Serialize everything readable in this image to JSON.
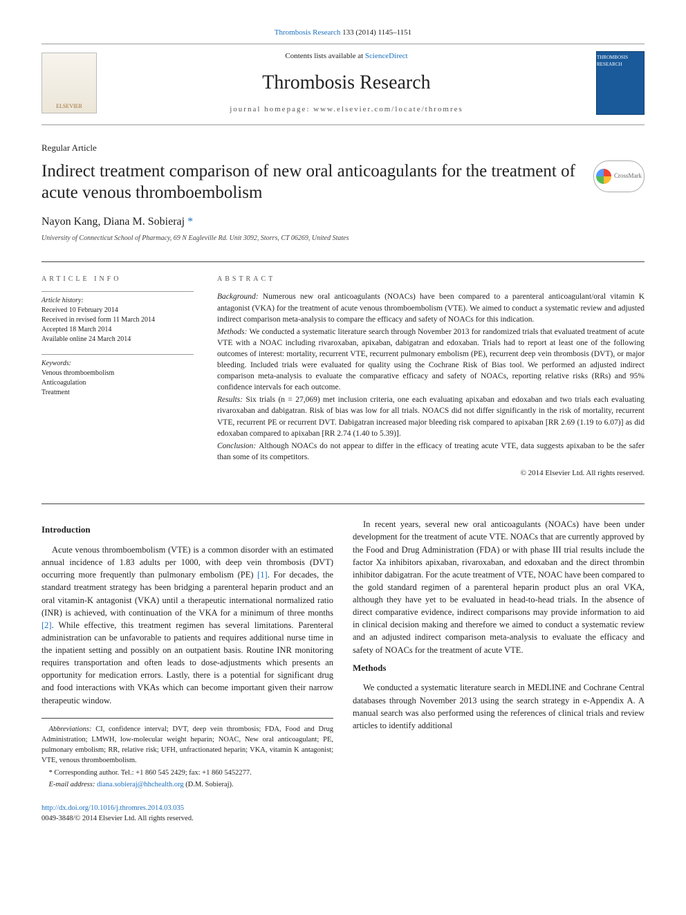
{
  "top_citation": {
    "journal_link_text": "Thrombosis Research",
    "citation_rest": " 133 (2014) 1145–1151"
  },
  "header": {
    "elsevier": "ELSEVIER",
    "contents_prefix": "Contents lists available at ",
    "contents_link": "ScienceDirect",
    "journal_name": "Thrombosis Research",
    "homepage_prefix": "journal homepage: ",
    "homepage_url": "www.elsevier.com/locate/thromres",
    "cover_label": "THROMBOSIS RESEARCH"
  },
  "article": {
    "type": "Regular Article",
    "title": "Indirect treatment comparison of new oral anticoagulants for the treatment of acute venous thromboembolism",
    "crossmark_label": "CrossMark",
    "authors": "Nayon Kang, Diana M. Sobieraj ",
    "corr_mark": "*",
    "affiliation": "University of Connecticut School of Pharmacy, 69 N Eagleville Rd. Unit 3092, Storrs, CT 06269, United States"
  },
  "meta": {
    "info_heading": "article info",
    "abstract_heading": "abstract",
    "history_label": "Article history:",
    "history": [
      "Received 10 February 2014",
      "Received in revised form 11 March 2014",
      "Accepted 18 March 2014",
      "Available online 24 March 2014"
    ],
    "keywords_label": "Keywords:",
    "keywords": [
      "Venous thromboembolism",
      "Anticoagulation",
      "Treatment"
    ]
  },
  "abstract": {
    "background_label": "Background: ",
    "background": "Numerous new oral anticoagulants (NOACs) have been compared to a parenteral anticoagulant/oral vitamin K antagonist (VKA) for the treatment of acute venous thromboembolism (VTE). We aimed to conduct a systematic review and adjusted indirect comparison meta-analysis to compare the efficacy and safety of NOACs for this indication.",
    "methods_label": "Methods: ",
    "methods": "We conducted a systematic literature search through November 2013 for randomized trials that evaluated treatment of acute VTE with a NOAC including rivaroxaban, apixaban, dabigatran and edoxaban. Trials had to report at least one of the following outcomes of interest: mortality, recurrent VTE, recurrent pulmonary embolism (PE), recurrent deep vein thrombosis (DVT), or major bleeding. Included trials were evaluated for quality using the Cochrane Risk of Bias tool. We performed an adjusted indirect comparison meta-analysis to evaluate the comparative efficacy and safety of NOACs, reporting relative risks (RRs) and 95% confidence intervals for each outcome.",
    "results_label": "Results: ",
    "results": "Six trials (n = 27,069) met inclusion criteria, one each evaluating apixaban and edoxaban and two trials each evaluating rivaroxaban and dabigatran. Risk of bias was low for all trials. NOACS did not differ significantly in the risk of mortality, recurrent VTE, recurrent PE or recurrent DVT. Dabigatran increased major bleeding risk compared to apixaban [RR 2.69 (1.19 to 6.07)] as did edoxaban compared to apixaban [RR 2.74 (1.40 to 5.39)].",
    "conclusion_label": "Conclusion: ",
    "conclusion": "Although NOACs do not appear to differ in the efficacy of treating acute VTE, data suggests apixaban to be the safer than some of its competitors.",
    "copyright": "© 2014 Elsevier Ltd. All rights reserved."
  },
  "body": {
    "intro_heading": "Introduction",
    "intro_p1a": "Acute venous thromboembolism (VTE) is a common disorder with an estimated annual incidence of 1.83 adults per 1000, with deep vein thrombosis (DVT) occurring more frequently than pulmonary embolism (PE) ",
    "intro_ref1": "[1]",
    "intro_p1b": ". For decades, the standard treatment strategy has been bridging a parenteral heparin product and an oral vitamin-K antagonist (VKA) until a therapeutic international normalized ratio (INR) is achieved, with continuation of the VKA for a minimum of three months ",
    "intro_ref2": "[2]",
    "intro_p1c": ". While effective, this treatment regimen has several limitations. Parenteral administration can be unfavorable to patients and requires additional nurse time in the inpatient setting and possibly on an outpatient basis. Routine INR monitoring requires transportation and often leads to dose-adjustments which presents an opportunity for medication errors. Lastly, there is a potential for significant drug and food interactions with VKAs which can become important given their narrow therapeutic window.",
    "intro_p2": "In recent years, several new oral anticoagulants (NOACs) have been under development for the treatment of acute VTE. NOACs that are currently approved by the Food and Drug Administration (FDA) or with phase III trial results include the factor Xa inhibitors apixaban, rivaroxaban, and edoxaban and the direct thrombin inhibitor dabigatran. For the acute treatment of VTE, NOAC have been compared to the gold standard regimen of a parenteral heparin product plus an oral VKA, although they have yet to be evaluated in head-to-head trials. In the absence of direct comparative evidence, indirect comparisons may provide information to aid in clinical decision making and therefore we aimed to conduct a systematic review and an adjusted indirect comparison meta-analysis to evaluate the efficacy and safety of NOACs for the treatment of acute VTE.",
    "methods_heading": "Methods",
    "methods_p1": "We conducted a systematic literature search in MEDLINE and Cochrane Central databases through November 2013 using the search strategy in e-Appendix A. A manual search was also performed using the references of clinical trials and review articles to identify additional"
  },
  "footnotes": {
    "abbrev_label": "Abbreviations: ",
    "abbrev": "CI, confidence interval; DVT, deep vein thrombosis; FDA, Food and Drug Administration; LMWH, low-molecular weight heparin; NOAC, New oral anticoagulant; PE, pulmonary embolism; RR, relative risk; UFH, unfractionated heparin; VKA, vitamin K antagonist; VTE, venous thromboembolism.",
    "corr_mark": "* ",
    "corr_text": "Corresponding author. Tel.: +1 860 545 2429; fax: +1 860 5452277.",
    "email_label": "E-mail address: ",
    "email": "diana.sobieraj@hhchealth.org",
    "email_suffix": " (D.M. Sobieraj)."
  },
  "footer": {
    "doi": "http://dx.doi.org/10.1016/j.thromres.2014.03.035",
    "issn_line": "0049-3848/© 2014 Elsevier Ltd. All rights reserved."
  },
  "colors": {
    "link": "#1a6fbf",
    "rule": "#444444"
  }
}
